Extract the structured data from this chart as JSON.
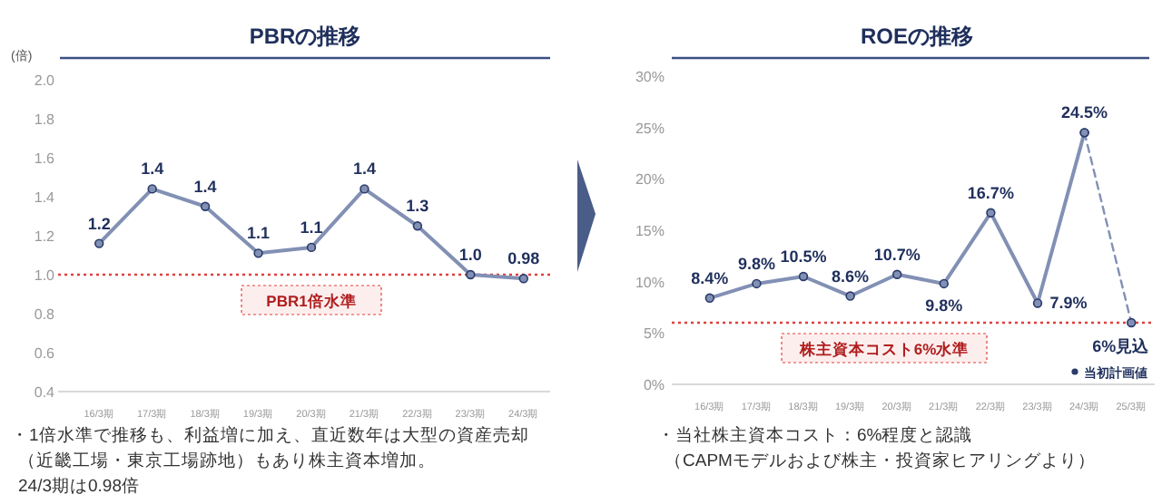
{
  "chart_data": [
    {
      "type": "line",
      "title": "PBRの推移",
      "ylabel": "(倍)",
      "categories": [
        "16/3期",
        "17/3期",
        "18/3期",
        "19/3期",
        "20/3期",
        "21/3期",
        "22/3期",
        "23/3期",
        "24/3期"
      ],
      "series": [
        {
          "color": "#8290b4",
          "values": [
            1.16,
            1.44,
            1.35,
            1.11,
            1.14,
            1.44,
            1.25,
            1.0,
            0.98
          ],
          "value_labels": [
            "1.2",
            "1.4",
            "1.4",
            "1.1",
            "1.1",
            "1.4",
            "1.3",
            "1.0",
            "0.98"
          ]
        }
      ],
      "ylim": [
        0.4,
        2.0
      ],
      "yticks": [
        {
          "value": 0.4,
          "label": "0.4"
        },
        {
          "value": 0.6,
          "label": "0.6"
        },
        {
          "value": 0.8,
          "label": "0.8"
        },
        {
          "value": 1.0,
          "label": "1.0"
        },
        {
          "value": 1.2,
          "label": "1.2"
        },
        {
          "value": 1.4,
          "label": "1.4"
        },
        {
          "value": 1.6,
          "label": "1.6"
        },
        {
          "value": 1.8,
          "label": "1.8"
        },
        {
          "value": 2.0,
          "label": "2.0"
        }
      ],
      "ref_lines": [
        {
          "axis": "y",
          "value": 1.0,
          "label": "PBR1倍水準",
          "color": "#e0403c",
          "line_style": "dotted"
        }
      ],
      "marker": "circle",
      "legend": false,
      "annotations": [
        "・1倍水準で推移も、利益増に加え、直近数年は大型の資産売却",
        "（近畿工場・東京工場跡地）もあり株主資本増加。",
        "24/3期は0.98倍"
      ]
    },
    {
      "type": "line",
      "title": "ROEの推移",
      "categories": [
        "16/3期",
        "17/3期",
        "18/3期",
        "19/3期",
        "20/3期",
        "21/3期",
        "22/3期",
        "23/3期",
        "24/3期",
        "25/3期"
      ],
      "series": [
        {
          "color": "#8290b4",
          "values": [
            8.4,
            9.8,
            10.5,
            8.6,
            10.7,
            9.8,
            16.7,
            7.9,
            24.5,
            null
          ],
          "value_labels": [
            "8.4%",
            "9.8%",
            "10.5%",
            "8.6%",
            "10.7%",
            "9.8%",
            "16.7%",
            "7.9%",
            "24.5%",
            null
          ]
        },
        {
          "name": "当初計画値",
          "color": "#8290b4",
          "line_style": "dashed",
          "values": [
            null,
            null,
            null,
            null,
            null,
            null,
            null,
            null,
            24.5,
            6
          ],
          "value_labels": [
            null,
            null,
            null,
            null,
            null,
            null,
            null,
            null,
            null,
            "6%見込"
          ]
        }
      ],
      "ylim": [
        0,
        30
      ],
      "yticks": [
        {
          "value": 0,
          "label": "0%"
        },
        {
          "value": 5,
          "label": "5%"
        },
        {
          "value": 10,
          "label": "10%"
        },
        {
          "value": 15,
          "label": "15%"
        },
        {
          "value": 20,
          "label": "20%"
        },
        {
          "value": 25,
          "label": "25%"
        },
        {
          "value": 30,
          "label": "30%"
        }
      ],
      "ref_lines": [
        {
          "axis": "y",
          "value": 6,
          "label": "株主資本コスト6%水準",
          "color": "#e0403c",
          "line_style": "dotted"
        }
      ],
      "marker": "circle",
      "legend": "bottom right",
      "annotations": [
        "・当社株主資本コスト：6%程度と認識",
        "（CAPMモデルおよび株主・投資家ヒアリングより）"
      ]
    }
  ]
}
